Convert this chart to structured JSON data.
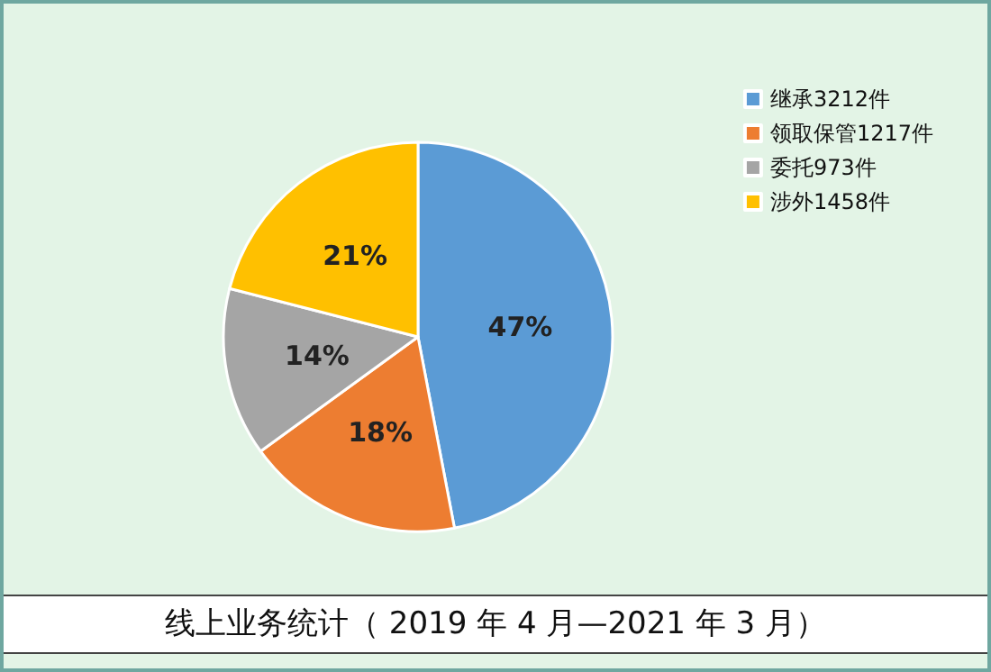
{
  "chart_data": {
    "type": "pie",
    "title": "线上业务统计（ 2019 年 4 月—2021 年 3 月）",
    "categories": [
      "继承3212件",
      "领取保管1217件",
      "委托973件",
      "涉外1458件"
    ],
    "values": [
      47,
      18,
      14,
      21
    ],
    "colors": [
      "#5b9bd5",
      "#ed7d31",
      "#a5a5a5",
      "#ffc000"
    ],
    "value_labels": [
      "47%",
      "18%",
      "14%",
      "21%"
    ],
    "legend": "top right"
  }
}
